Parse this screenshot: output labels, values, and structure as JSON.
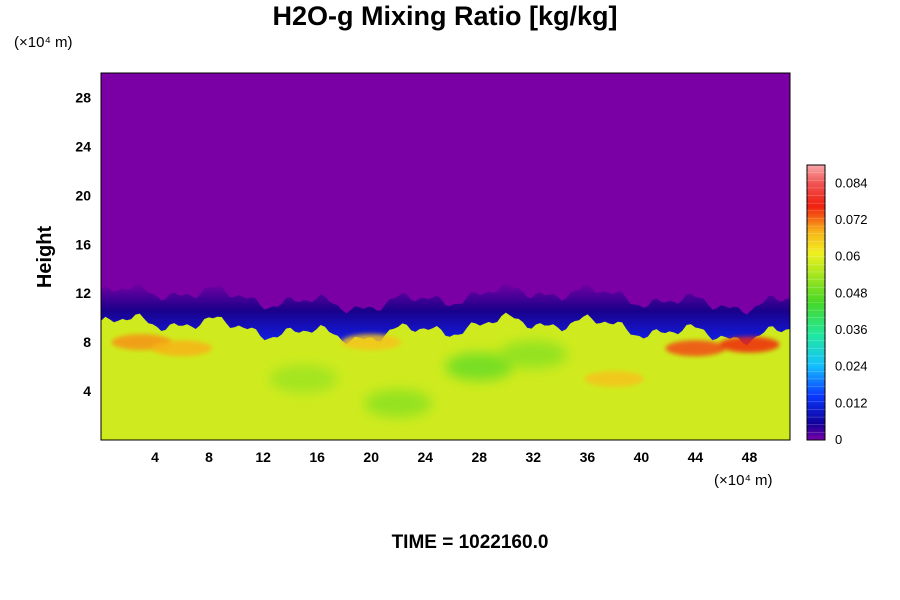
{
  "chart_data": {
    "type": "heatmap",
    "title": "H2O-g Mixing Ratio [kg/kg]",
    "ylabel": "Height",
    "y_unit": "(×10⁴ m)",
    "x_unit": "(×10⁴ m)",
    "xlim": [
      0,
      51
    ],
    "ylim": [
      0,
      30
    ],
    "x_ticks": [
      "4",
      "8",
      "12",
      "16",
      "20",
      "24",
      "28",
      "32",
      "36",
      "40",
      "44",
      "48"
    ],
    "y_ticks": [
      "4",
      "8",
      "12",
      "16",
      "20",
      "24",
      "28"
    ],
    "x_tick_values": [
      4,
      8,
      12,
      16,
      20,
      24,
      28,
      32,
      36,
      40,
      44,
      48
    ],
    "y_tick_values": [
      4,
      8,
      12,
      16,
      20,
      24,
      28
    ],
    "field_description": {
      "upper_value": 0,
      "lower_value": 0.058,
      "transition_height": 10,
      "moist_patches": [
        {
          "x": 3,
          "y": 8,
          "value": 0.07
        },
        {
          "x": 6,
          "y": 7.5,
          "value": 0.068
        },
        {
          "x": 20,
          "y": 8,
          "value": 0.066
        },
        {
          "x": 38,
          "y": 5,
          "value": 0.066
        },
        {
          "x": 44,
          "y": 7.5,
          "value": 0.074
        },
        {
          "x": 48,
          "y": 7.8,
          "value": 0.076
        }
      ],
      "dry_patches": [
        {
          "x": 15,
          "y": 5,
          "value": 0.052
        },
        {
          "x": 22,
          "y": 3,
          "value": 0.05
        },
        {
          "x": 28,
          "y": 6,
          "value": 0.046
        },
        {
          "x": 32,
          "y": 7,
          "value": 0.05
        }
      ]
    },
    "colorbar": {
      "min": 0,
      "max": 0.09,
      "ticks": [
        "0",
        "0.012",
        "0.024",
        "0.036",
        "0.048",
        "0.06",
        "0.072",
        "0.084"
      ],
      "tick_values": [
        0,
        0.012,
        0.024,
        0.036,
        0.048,
        0.06,
        0.072,
        0.084
      ]
    }
  },
  "footer": {
    "time_label": "TIME = 1022160.0"
  },
  "colors": {
    "dry": "#7a00a6",
    "moist": "#e7f020",
    "frame": "#000000"
  }
}
